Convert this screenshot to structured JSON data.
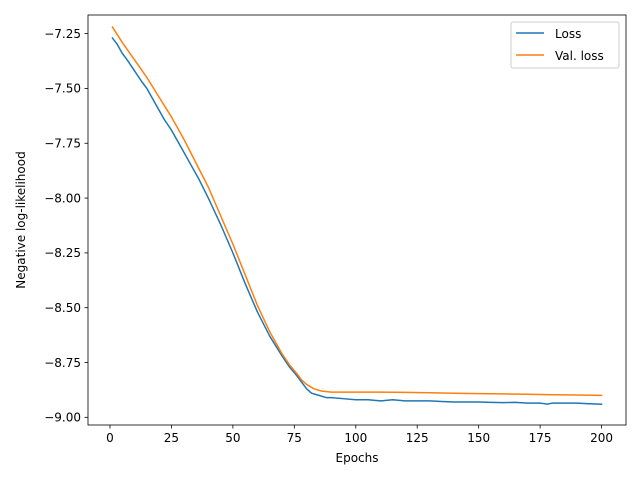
{
  "chart_data": {
    "type": "line",
    "title": "",
    "xlabel": "Epochs",
    "ylabel": "Negative log-likelihood",
    "xlim": [
      -8.95,
      209.95
    ],
    "ylim": [
      -9.035,
      -7.165
    ],
    "xticks": [
      0,
      25,
      50,
      75,
      100,
      125,
      150,
      175,
      200
    ],
    "xtick_labels": [
      "0",
      "25",
      "50",
      "75",
      "100",
      "125",
      "150",
      "175",
      "200"
    ],
    "yticks": [
      -9.0,
      -8.75,
      -8.5,
      -8.25,
      -8.0,
      -7.75,
      -7.5,
      -7.25
    ],
    "ytick_labels": [
      "−9.00",
      "−8.75",
      "−8.50",
      "−8.25",
      "−8.00",
      "−7.75",
      "−7.50",
      "−7.25"
    ],
    "grid": false,
    "legend_position": "top-right",
    "colors": {
      "loss": "#1f77b4",
      "val_loss": "#ff7f0e"
    },
    "series": [
      {
        "name": "Loss",
        "x": [
          1,
          3,
          5,
          7,
          10,
          13,
          15,
          17,
          20,
          22,
          25,
          27,
          30,
          33,
          36,
          40,
          45,
          50,
          55,
          60,
          65,
          70,
          73,
          76,
          78,
          80,
          82,
          85,
          88,
          90,
          95,
          100,
          105,
          110,
          115,
          120,
          125,
          130,
          135,
          140,
          145,
          150,
          155,
          160,
          165,
          170,
          175,
          178,
          180,
          185,
          190,
          195,
          200
        ],
        "y": [
          -7.27,
          -7.3,
          -7.34,
          -7.37,
          -7.42,
          -7.47,
          -7.5,
          -7.54,
          -7.6,
          -7.64,
          -7.69,
          -7.73,
          -7.79,
          -7.85,
          -7.91,
          -8.0,
          -8.12,
          -8.25,
          -8.39,
          -8.52,
          -8.63,
          -8.72,
          -8.77,
          -8.81,
          -8.84,
          -8.87,
          -8.89,
          -8.9,
          -8.91,
          -8.91,
          -8.915,
          -8.92,
          -8.92,
          -8.925,
          -8.92,
          -8.925,
          -8.925,
          -8.925,
          -8.928,
          -8.93,
          -8.93,
          -8.93,
          -8.932,
          -8.933,
          -8.932,
          -8.935,
          -8.935,
          -8.94,
          -8.935,
          -8.935,
          -8.935,
          -8.938,
          -8.94
        ]
      },
      {
        "name": "Val. loss",
        "x": [
          1,
          5,
          10,
          15,
          20,
          25,
          30,
          35,
          40,
          45,
          50,
          55,
          60,
          65,
          70,
          73,
          76,
          78,
          80,
          83,
          86,
          90,
          95,
          100,
          110,
          120,
          130,
          140,
          150,
          160,
          170,
          180,
          190,
          200
        ],
        "y": [
          -7.22,
          -7.29,
          -7.37,
          -7.45,
          -7.54,
          -7.63,
          -7.73,
          -7.84,
          -7.95,
          -8.08,
          -8.21,
          -8.35,
          -8.49,
          -8.61,
          -8.71,
          -8.76,
          -8.8,
          -8.83,
          -8.85,
          -8.87,
          -8.88,
          -8.885,
          -8.885,
          -8.885,
          -8.885,
          -8.886,
          -8.888,
          -8.89,
          -8.892,
          -8.893,
          -8.895,
          -8.897,
          -8.898,
          -8.9
        ]
      }
    ]
  }
}
